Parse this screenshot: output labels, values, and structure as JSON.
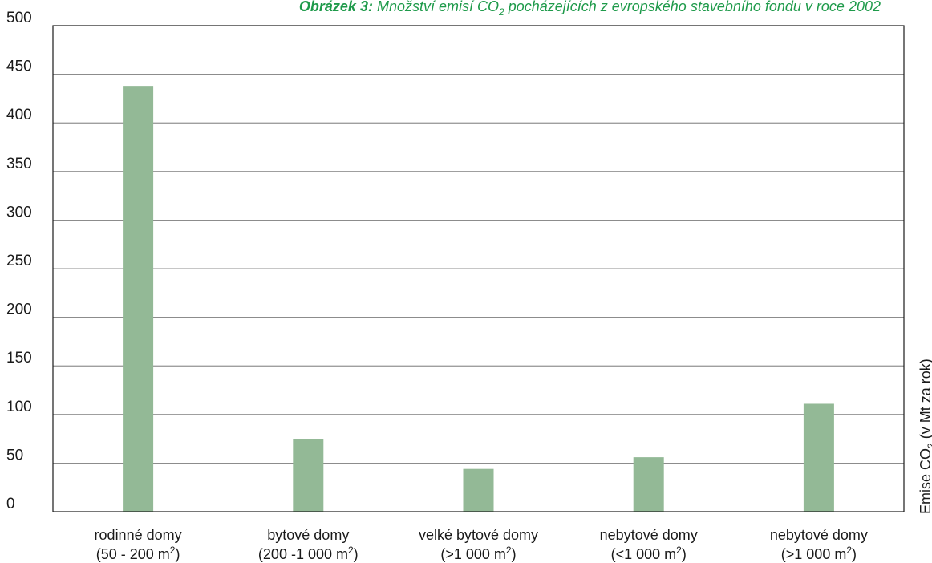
{
  "chart_data": {
    "type": "bar",
    "title_prefix": "Obrázek 3:",
    "title_main": "Množství emisí CO",
    "title_sub": "2",
    "title_end": " pocházejících z evropského stavebního fondu v roce 2002",
    "ylabel_main": "Emise CO",
    "ylabel_sub": "2",
    "ylabel_end": "  (v Mt za rok)",
    "xlabel": "",
    "ylim": [
      0,
      500
    ],
    "yticks": [
      0,
      50,
      100,
      150,
      200,
      250,
      300,
      350,
      400,
      450,
      500
    ],
    "grid": true,
    "bar_color": "#93b996",
    "categories": [
      {
        "line1": "rodinné domy",
        "line2": "(50 - 200 m",
        "sup": "2",
        "close": ")"
      },
      {
        "line1": "bytové domy",
        "line2": "(200 -1 000 m",
        "sup": "2",
        "close": ")"
      },
      {
        "line1": "velké bytové domy",
        "line2": "(>1 000 m",
        "sup": "2",
        "close": ")"
      },
      {
        "line1": "nebytové domy",
        "line2": "(<1 000 m",
        "sup": "2",
        "close": ")"
      },
      {
        "line1": "nebytové domy",
        "line2": "(>1 000 m",
        "sup": "2",
        "close": ")"
      }
    ],
    "values": [
      438,
      75,
      44,
      56,
      111
    ]
  }
}
